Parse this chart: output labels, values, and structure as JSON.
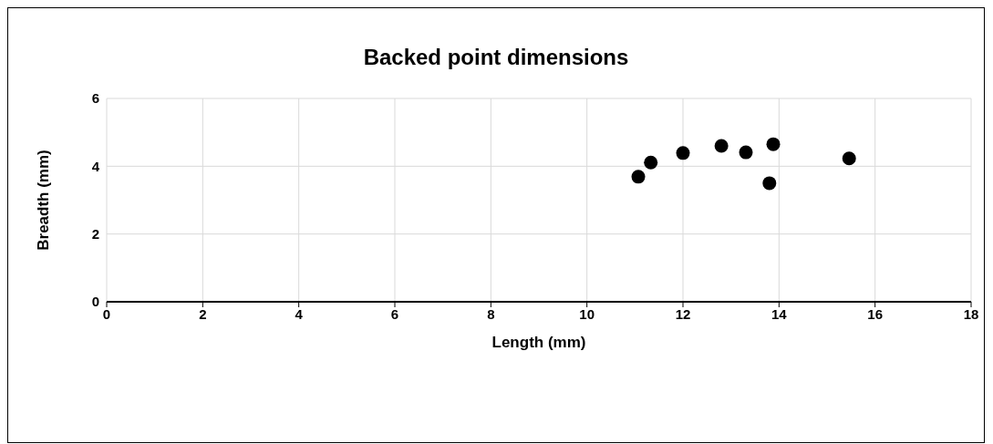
{
  "chart_data": {
    "type": "scatter",
    "title": "Backed point dimensions",
    "xlabel": "Length (mm)",
    "ylabel": "Breadth (mm)",
    "x": [
      11.07,
      11.33,
      12.0,
      12.8,
      13.31,
      13.88,
      13.8,
      15.46
    ],
    "values": [
      3.69,
      4.11,
      4.39,
      4.6,
      4.41,
      4.65,
      3.5,
      4.23
    ],
    "color": "#000000",
    "marker": "circle",
    "xlim": [
      0,
      18
    ],
    "xticks": [
      0,
      2,
      4,
      6,
      8,
      10,
      12,
      14,
      16,
      18
    ],
    "ylim": [
      0,
      6
    ],
    "yticks": [
      0,
      2,
      4,
      6
    ],
    "grid": true,
    "legend": false
  }
}
